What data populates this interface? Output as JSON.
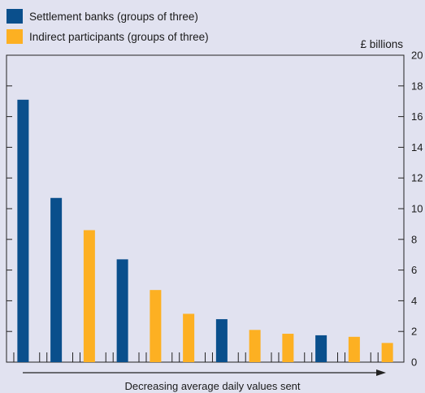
{
  "legend": [
    {
      "label": "Settlement banks (groups of three)",
      "color": "#0a4f8c"
    },
    {
      "label": "Indirect participants (groups of three)",
      "color": "#fdb022"
    }
  ],
  "chart_data": {
    "type": "bar",
    "unit_label": "£ billions",
    "xlabel": "Decreasing average daily values sent",
    "ylim": [
      0,
      20
    ],
    "yticks": [
      0,
      2,
      4,
      6,
      8,
      10,
      12,
      14,
      16,
      18,
      20
    ],
    "grid": false,
    "legend_position": "top-left",
    "series": [
      {
        "name": "Settlement banks (groups of three)",
        "color": "#0a4f8c"
      },
      {
        "name": "Indirect participants (groups of three)",
        "color": "#fdb022"
      }
    ],
    "bars": [
      {
        "series": 0,
        "value": 17.1
      },
      {
        "series": 0,
        "value": 10.7
      },
      {
        "series": 1,
        "value": 8.6
      },
      {
        "series": 0,
        "value": 6.7
      },
      {
        "series": 1,
        "value": 4.7
      },
      {
        "series": 1,
        "value": 3.15
      },
      {
        "series": 0,
        "value": 2.8
      },
      {
        "series": 1,
        "value": 2.1
      },
      {
        "series": 1,
        "value": 1.85
      },
      {
        "series": 0,
        "value": 1.75
      },
      {
        "series": 1,
        "value": 1.65
      },
      {
        "series": 1,
        "value": 1.25
      }
    ]
  }
}
